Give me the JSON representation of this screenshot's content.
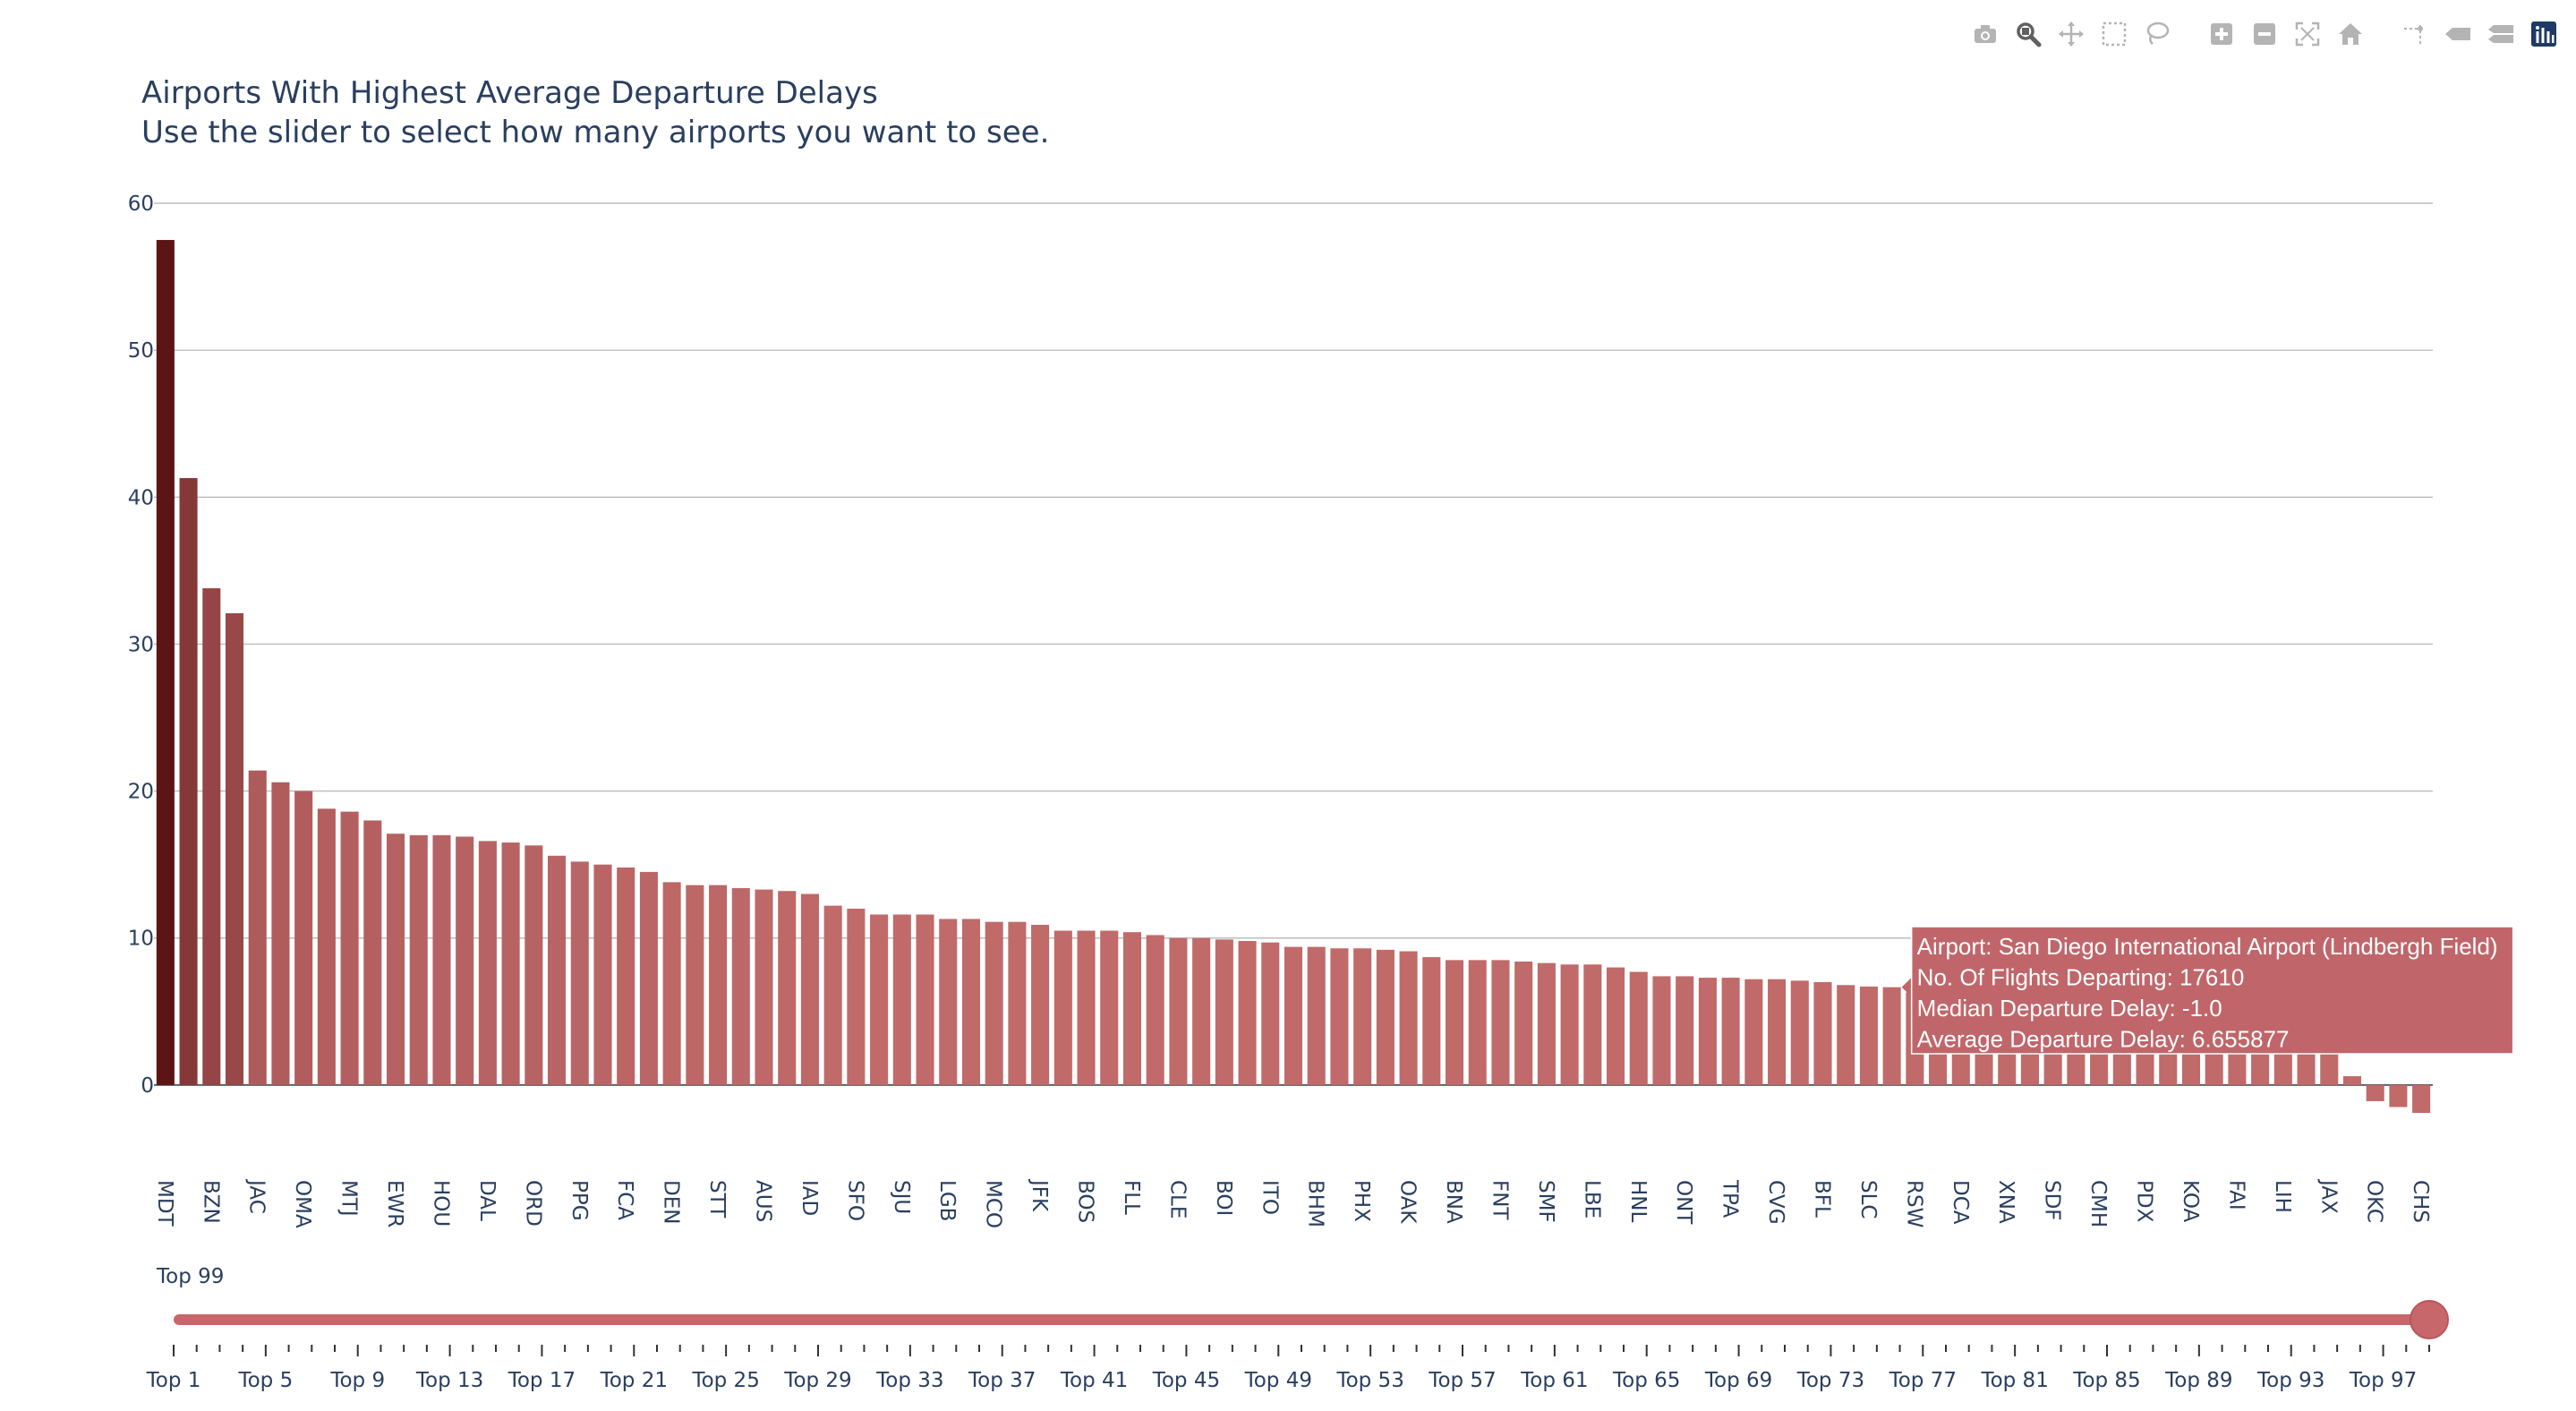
{
  "modebar": {
    "buttons": [
      {
        "name": "download-plot-button",
        "icon": "camera-icon",
        "title": "Download plot as a png"
      },
      {
        "name": "zoom-button",
        "icon": "zoom-icon",
        "title": "Zoom"
      },
      {
        "name": "pan-button",
        "icon": "pan-icon",
        "title": "Pan"
      },
      {
        "name": "box-select-button",
        "icon": "box-select-icon",
        "title": "Box Select"
      },
      {
        "name": "lasso-select-button",
        "icon": "lasso-icon",
        "title": "Lasso Select"
      },
      {
        "name": "zoom-in-button",
        "icon": "zoom-in-icon",
        "title": "Zoom in"
      },
      {
        "name": "zoom-out-button",
        "icon": "zoom-out-icon",
        "title": "Zoom out"
      },
      {
        "name": "autoscale-button",
        "icon": "autoscale-icon",
        "title": "Autoscale"
      },
      {
        "name": "reset-axes-button",
        "icon": "home-icon",
        "title": "Reset axes"
      },
      {
        "name": "spike-lines-button",
        "icon": "spike-lines-icon",
        "title": "Toggle Spike Lines"
      },
      {
        "name": "hover-closest-button",
        "icon": "hover-closest-icon",
        "title": "Show closest data on hover"
      },
      {
        "name": "hover-compare-button",
        "icon": "hover-compare-icon",
        "title": "Compare data on hover"
      },
      {
        "name": "plotly-logo-button",
        "icon": "plotly-logo-icon",
        "title": "Produced with Plotly"
      }
    ],
    "icon_color": "#b4b4b4",
    "active_color": "#606060",
    "logo_color": "#1f3a66"
  },
  "chart_data": {
    "type": "bar",
    "title": "Airports With Highest Average Departure Delays",
    "subtitle": "Use the slider to select how many airports you want to see.",
    "xlabel": "",
    "ylabel": "",
    "ylim": [
      -2.2,
      60
    ],
    "yticks": [
      0,
      10,
      20,
      30,
      40,
      50,
      60
    ],
    "grid": true,
    "color_scale": {
      "dark": "#5c1414",
      "light": "#c06a6a"
    },
    "categories": [
      "MDT",
      "",
      "BZN",
      "",
      "JAC",
      "",
      "OMA",
      "",
      "MTJ",
      "",
      "EWR",
      "",
      "HOU",
      "",
      "DAL",
      "",
      "ORD",
      "",
      "PPG",
      "",
      "FCA",
      "",
      "DEN",
      "",
      "STT",
      "",
      "AUS",
      "",
      "IAD",
      "",
      "SFO",
      "",
      "SJU",
      "",
      "LGB",
      "",
      "MCO",
      "",
      "JFK",
      "",
      "BOS",
      "",
      "FLL",
      "",
      "CLE",
      "",
      "BOI",
      "",
      "ITO",
      "",
      "BHM",
      "",
      "PHX",
      "",
      "OAK",
      "",
      "BNA",
      "",
      "FNT",
      "",
      "SMF",
      "",
      "LBE",
      "",
      "HNL",
      "",
      "ONT",
      "",
      "TPA",
      "",
      "CVG",
      "",
      "BFL",
      "",
      "SLC",
      "",
      "RSW",
      "",
      "DCA",
      "",
      "XNA",
      "",
      "SDF",
      "",
      "CMH",
      "",
      "PDX",
      "",
      "KOA",
      "",
      "FAI",
      "",
      "LIH",
      "",
      "JAX",
      "",
      "OKC",
      "",
      "CHS"
    ],
    "values": [
      57.5,
      41.3,
      33.8,
      32.1,
      21.4,
      20.6,
      20.0,
      18.8,
      18.6,
      18.0,
      17.1,
      17.0,
      17.0,
      16.9,
      16.6,
      16.5,
      16.3,
      15.6,
      15.2,
      15.0,
      14.8,
      14.5,
      13.8,
      13.6,
      13.6,
      13.4,
      13.3,
      13.2,
      13.0,
      12.2,
      12.0,
      11.6,
      11.6,
      11.6,
      11.3,
      11.3,
      11.1,
      11.1,
      10.9,
      10.5,
      10.5,
      10.5,
      10.4,
      10.2,
      10.0,
      10.0,
      9.9,
      9.8,
      9.7,
      9.4,
      9.4,
      9.3,
      9.3,
      9.2,
      9.1,
      8.7,
      8.5,
      8.5,
      8.5,
      8.4,
      8.3,
      8.2,
      8.2,
      8.0,
      7.7,
      7.4,
      7.4,
      7.3,
      7.3,
      7.2,
      7.2,
      7.1,
      7.0,
      6.8,
      6.7,
      6.656,
      6.3,
      6.2,
      6.1,
      6.0,
      5.9,
      5.8,
      5.7,
      5.6,
      5.5,
      5.3,
      5.2,
      5.0,
      4.8,
      4.6,
      4.4,
      4.2,
      4.0,
      3.5,
      2.2,
      0.6,
      -1.1,
      -1.5,
      -1.9
    ],
    "slider": {
      "current_label": "Top 99",
      "value": 99,
      "min": 1,
      "max": 99,
      "labels": [
        "Top 1",
        "Top 5",
        "Top 9",
        "Top 13",
        "Top 17",
        "Top 21",
        "Top 25",
        "Top 29",
        "Top 33",
        "Top 37",
        "Top 41",
        "Top 45",
        "Top 49",
        "Top 53",
        "Top 57",
        "Top 61",
        "Top 65",
        "Top 69",
        "Top 73",
        "Top 77",
        "Top 81",
        "Top 85",
        "Top 89",
        "Top 93",
        "Top 97"
      ],
      "rail_color": "#c8676b",
      "handle_color": "#c8676b"
    },
    "hover": {
      "bar_index": 75,
      "lines": [
        "Airport: San Diego International Airport (Lindbergh Field)",
        "No. Of Flights Departing: 17610",
        "Median Departure Delay: -1.0",
        "Average Departure Delay: 6.655877"
      ],
      "bg_color": "#c0666a"
    }
  }
}
